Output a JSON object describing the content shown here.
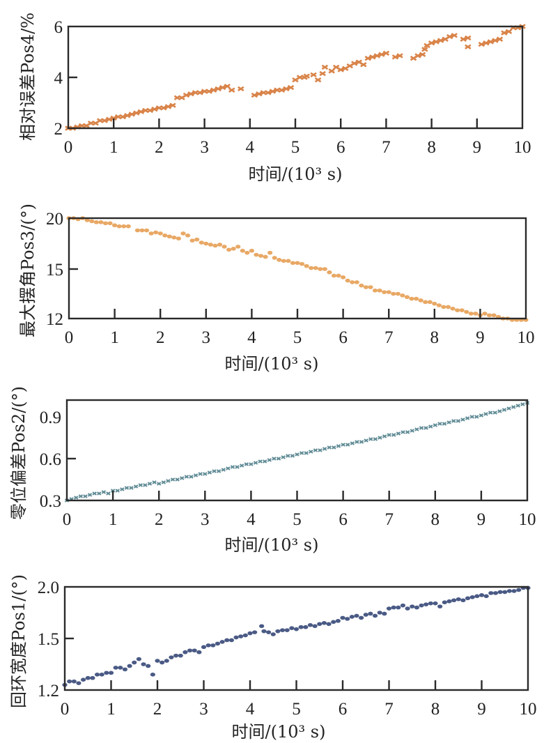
{
  "chart_data": [
    {
      "type": "scatter",
      "marker": "x",
      "color": "#D9844A",
      "ylabel": "相对误差Pos4/%",
      "xlabel": "时间/(10³ s)",
      "xlim": [
        0,
        10
      ],
      "ylim": [
        2,
        6
      ],
      "xticks": [
        "0",
        "1",
        "2",
        "3",
        "4",
        "5",
        "6",
        "7",
        "8",
        "9",
        "10"
      ],
      "yticks": [
        "2",
        "4",
        "6"
      ],
      "ytick_values": [
        2,
        4,
        6
      ],
      "series": [
        {
          "name": "Pos4",
          "x": [
            0,
            0.1,
            0.2,
            0.3,
            0.4,
            0.5,
            0.6,
            0.7,
            0.8,
            0.9,
            1.0,
            1.1,
            1.2,
            1.3,
            1.4,
            1.5,
            1.6,
            1.7,
            1.8,
            1.9,
            2.0,
            2.1,
            2.2,
            2.3,
            2.4,
            2.5,
            2.6,
            2.7,
            2.8,
            2.9,
            3.0,
            3.1,
            3.2,
            3.3,
            3.4,
            3.5,
            3.6,
            3.8,
            4.1,
            4.2,
            4.3,
            4.4,
            4.5,
            4.6,
            4.7,
            4.8,
            4.9,
            5.0,
            5.1,
            5.2,
            5.25,
            5.4,
            5.5,
            5.6,
            5.65,
            5.8,
            5.9,
            6.0,
            6.1,
            6.2,
            6.3,
            6.4,
            6.5,
            6.6,
            6.7,
            6.8,
            6.9,
            7.0,
            7.2,
            7.3,
            7.6,
            7.7,
            7.8,
            7.85,
            7.9,
            8.0,
            8.1,
            8.2,
            8.3,
            8.4,
            8.5,
            8.7,
            8.8,
            8.8,
            9.1,
            9.2,
            9.3,
            9.4,
            9.5,
            9.6,
            9.7,
            9.8,
            9.9,
            10.0
          ],
          "y": [
            2.0,
            2.0,
            2.05,
            2.1,
            2.1,
            2.2,
            2.2,
            2.3,
            2.3,
            2.35,
            2.4,
            2.45,
            2.45,
            2.5,
            2.55,
            2.6,
            2.65,
            2.7,
            2.7,
            2.75,
            2.8,
            2.8,
            2.85,
            2.9,
            3.2,
            3.2,
            3.3,
            3.35,
            3.4,
            3.4,
            3.45,
            3.45,
            3.5,
            3.55,
            3.6,
            3.65,
            3.5,
            3.55,
            3.3,
            3.35,
            3.4,
            3.4,
            3.45,
            3.5,
            3.5,
            3.55,
            3.6,
            3.9,
            4.0,
            4.0,
            4.05,
            4.1,
            3.9,
            4.15,
            4.4,
            4.25,
            4.4,
            4.3,
            4.35,
            4.45,
            4.55,
            4.6,
            4.5,
            4.75,
            4.8,
            4.85,
            4.9,
            4.95,
            4.8,
            4.85,
            4.75,
            4.85,
            4.9,
            5.1,
            5.25,
            5.35,
            5.4,
            5.45,
            5.5,
            5.6,
            5.65,
            5.5,
            5.55,
            5.2,
            5.3,
            5.35,
            5.4,
            5.45,
            5.5,
            5.75,
            5.8,
            5.95,
            5.95,
            6.0
          ]
        }
      ]
    },
    {
      "type": "scatter",
      "marker": "o",
      "color": "#E8A865",
      "ylabel": "最大摆角Pos3/(°)",
      "xlabel": "时间/(10³ s)",
      "xlim": [
        0,
        10
      ],
      "ylim": [
        12,
        20
      ],
      "xticks": [
        "0",
        "1",
        "2",
        "3",
        "4",
        "5",
        "6",
        "7",
        "8",
        "9",
        "10"
      ],
      "yticks": [
        "12",
        "15",
        "20"
      ],
      "ytick_values": [
        12,
        15,
        20
      ],
      "series": [
        {
          "name": "Pos3",
          "x": [
            0,
            0.1,
            0.2,
            0.3,
            0.4,
            0.5,
            0.6,
            0.7,
            0.8,
            0.9,
            1.0,
            1.1,
            1.2,
            1.3,
            1.5,
            1.6,
            1.7,
            1.8,
            1.9,
            2.0,
            2.1,
            2.2,
            2.3,
            2.4,
            2.5,
            2.6,
            2.7,
            2.8,
            2.9,
            3.0,
            3.1,
            3.2,
            3.3,
            3.4,
            3.5,
            3.6,
            3.7,
            3.8,
            3.9,
            4.0,
            4.1,
            4.2,
            4.3,
            4.4,
            4.5,
            4.6,
            4.7,
            4.8,
            4.9,
            5.0,
            5.1,
            5.2,
            5.3,
            5.4,
            5.5,
            5.6,
            5.7,
            5.8,
            5.9,
            6.0,
            6.1,
            6.2,
            6.3,
            6.4,
            6.5,
            6.6,
            6.7,
            6.8,
            6.9,
            7.0,
            7.1,
            7.2,
            7.3,
            7.4,
            7.5,
            7.6,
            7.7,
            7.8,
            7.9,
            8.0,
            8.1,
            8.2,
            8.3,
            8.4,
            8.5,
            8.6,
            8.7,
            8.8,
            8.9,
            9.0,
            9.1,
            9.2,
            9.3,
            9.4,
            9.5,
            9.6,
            9.7,
            9.8,
            9.9,
            10.0
          ],
          "y": [
            20.0,
            20.0,
            19.9,
            20.0,
            19.8,
            19.7,
            19.6,
            19.6,
            19.5,
            19.5,
            19.3,
            19.2,
            19.2,
            19.2,
            18.8,
            18.8,
            18.8,
            18.5,
            18.6,
            18.5,
            18.3,
            18.2,
            18.1,
            18.0,
            18.5,
            18.3,
            17.8,
            17.9,
            17.6,
            17.5,
            17.4,
            17.3,
            17.4,
            17.2,
            16.9,
            17.0,
            17.2,
            16.8,
            16.6,
            16.8,
            16.4,
            16.3,
            16.2,
            16.6,
            16.1,
            15.9,
            15.8,
            15.8,
            15.6,
            15.6,
            15.5,
            15.3,
            15.1,
            15.1,
            15.0,
            15.0,
            14.8,
            14.6,
            14.6,
            14.5,
            14.3,
            14.2,
            14.2,
            14.0,
            13.9,
            13.9,
            13.7,
            13.7,
            13.6,
            13.6,
            13.5,
            13.5,
            13.4,
            13.3,
            13.2,
            13.2,
            13.1,
            13.0,
            13.0,
            12.9,
            12.8,
            12.7,
            12.7,
            12.6,
            12.5,
            12.5,
            12.4,
            12.3,
            12.3,
            12.2,
            12.3,
            12.2,
            12.2,
            12.1,
            12.0,
            12.0,
            11.9,
            11.9,
            11.8,
            11.8
          ]
        }
      ]
    },
    {
      "type": "scatter",
      "marker": "x",
      "color": "#5E8A94",
      "ylabel": "零位偏差Pos2/(°)",
      "xlabel": "时间/(10³ s)",
      "xlim": [
        0,
        10
      ],
      "ylim": [
        0.3,
        1.02
      ],
      "xticks": [
        "0",
        "1",
        "2",
        "3",
        "4",
        "5",
        "6",
        "7",
        "8",
        "9",
        "10"
      ],
      "yticks": [
        "0.3",
        "0.6",
        "0.9"
      ],
      "ytick_values": [
        0.3,
        0.6,
        0.9
      ],
      "series": [
        {
          "name": "Pos2",
          "x": [
            0,
            0.1,
            0.2,
            0.3,
            0.4,
            0.5,
            0.6,
            0.7,
            0.8,
            0.9,
            1.0,
            1.1,
            1.2,
            1.3,
            1.4,
            1.5,
            1.6,
            1.7,
            1.8,
            1.9,
            2.0,
            2.1,
            2.2,
            2.3,
            2.4,
            2.5,
            2.6,
            2.7,
            2.8,
            2.9,
            3.0,
            3.1,
            3.2,
            3.3,
            3.4,
            3.5,
            3.6,
            3.7,
            3.8,
            3.9,
            4.0,
            4.1,
            4.2,
            4.3,
            4.4,
            4.5,
            4.6,
            4.7,
            4.8,
            4.9,
            5.0,
            5.1,
            5.2,
            5.3,
            5.4,
            5.5,
            5.6,
            5.7,
            5.8,
            5.9,
            6.0,
            6.1,
            6.2,
            6.3,
            6.4,
            6.5,
            6.6,
            6.7,
            6.8,
            6.9,
            7.0,
            7.1,
            7.2,
            7.3,
            7.4,
            7.5,
            7.6,
            7.7,
            7.8,
            7.9,
            8.0,
            8.1,
            8.2,
            8.3,
            8.4,
            8.5,
            8.6,
            8.7,
            8.8,
            8.9,
            9.0,
            9.1,
            9.2,
            9.3,
            9.4,
            9.5,
            9.6,
            9.7,
            9.8,
            9.9,
            10.0
          ],
          "y": [
            0.3,
            0.31,
            0.32,
            0.33,
            0.33,
            0.34,
            0.35,
            0.35,
            0.36,
            0.35,
            0.37,
            0.37,
            0.38,
            0.39,
            0.39,
            0.4,
            0.41,
            0.41,
            0.42,
            0.43,
            0.42,
            0.43,
            0.44,
            0.45,
            0.45,
            0.46,
            0.47,
            0.47,
            0.48,
            0.49,
            0.49,
            0.5,
            0.51,
            0.51,
            0.52,
            0.53,
            0.54,
            0.54,
            0.55,
            0.56,
            0.56,
            0.57,
            0.58,
            0.58,
            0.59,
            0.6,
            0.6,
            0.61,
            0.62,
            0.62,
            0.63,
            0.64,
            0.64,
            0.65,
            0.66,
            0.66,
            0.67,
            0.68,
            0.68,
            0.69,
            0.7,
            0.7,
            0.71,
            0.72,
            0.72,
            0.73,
            0.74,
            0.74,
            0.75,
            0.76,
            0.77,
            0.77,
            0.78,
            0.79,
            0.79,
            0.8,
            0.81,
            0.82,
            0.82,
            0.83,
            0.84,
            0.85,
            0.85,
            0.86,
            0.87,
            0.87,
            0.88,
            0.89,
            0.9,
            0.9,
            0.91,
            0.92,
            0.93,
            0.93,
            0.94,
            0.95,
            0.96,
            0.97,
            0.98,
            0.99,
            1.0
          ]
        }
      ]
    },
    {
      "type": "scatter",
      "marker": "o",
      "color": "#4A5A85",
      "ylabel": "回环宽度Pos1/(°)",
      "xlabel": "时间/(10³ s)",
      "xlim": [
        0,
        10
      ],
      "ylim": [
        1.2,
        2.0
      ],
      "xticks": [
        "0",
        "1",
        "2",
        "3",
        "4",
        "5",
        "6",
        "7",
        "8",
        "9",
        "10"
      ],
      "yticks": [
        "1.2",
        "1.5",
        "2.0"
      ],
      "ytick_values": [
        1.2,
        1.5,
        2.0
      ],
      "series": [
        {
          "name": "Pos1",
          "x": [
            0,
            0.1,
            0.2,
            0.3,
            0.4,
            0.5,
            0.6,
            0.7,
            0.8,
            0.9,
            1.0,
            1.1,
            1.2,
            1.3,
            1.4,
            1.5,
            1.6,
            1.7,
            1.8,
            1.9,
            2.0,
            2.1,
            2.2,
            2.3,
            2.4,
            2.5,
            2.6,
            2.7,
            2.8,
            2.9,
            3.0,
            3.1,
            3.2,
            3.3,
            3.4,
            3.5,
            3.6,
            3.7,
            3.8,
            3.9,
            4.0,
            4.1,
            4.25,
            4.3,
            4.4,
            4.5,
            4.6,
            4.7,
            4.8,
            4.9,
            5.0,
            5.1,
            5.2,
            5.3,
            5.4,
            5.5,
            5.6,
            5.7,
            5.8,
            5.9,
            6.0,
            6.1,
            6.2,
            6.3,
            6.4,
            6.5,
            6.6,
            6.7,
            6.8,
            6.9,
            7.0,
            7.1,
            7.2,
            7.3,
            7.4,
            7.5,
            7.6,
            7.7,
            7.8,
            7.9,
            8.0,
            8.1,
            8.2,
            8.3,
            8.4,
            8.5,
            8.6,
            8.7,
            8.8,
            8.9,
            9.0,
            9.1,
            9.2,
            9.3,
            9.4,
            9.5,
            9.6,
            9.7,
            9.8,
            9.9,
            10.0
          ],
          "y": [
            1.23,
            1.25,
            1.25,
            1.24,
            1.26,
            1.27,
            1.27,
            1.29,
            1.29,
            1.3,
            1.3,
            1.33,
            1.33,
            1.32,
            1.34,
            1.36,
            1.38,
            1.35,
            1.34,
            1.29,
            1.37,
            1.36,
            1.37,
            1.39,
            1.4,
            1.4,
            1.42,
            1.43,
            1.43,
            1.42,
            1.45,
            1.46,
            1.46,
            1.47,
            1.48,
            1.49,
            1.49,
            1.51,
            1.52,
            1.53,
            1.55,
            1.56,
            1.62,
            1.57,
            1.56,
            1.54,
            1.57,
            1.58,
            1.58,
            1.6,
            1.59,
            1.61,
            1.61,
            1.63,
            1.62,
            1.64,
            1.65,
            1.64,
            1.66,
            1.67,
            1.7,
            1.69,
            1.71,
            1.72,
            1.7,
            1.73,
            1.74,
            1.72,
            1.75,
            1.74,
            1.79,
            1.8,
            1.8,
            1.82,
            1.79,
            1.81,
            1.8,
            1.82,
            1.83,
            1.84,
            1.84,
            1.81,
            1.85,
            1.86,
            1.87,
            1.88,
            1.87,
            1.89,
            1.9,
            1.91,
            1.92,
            1.91,
            1.94,
            1.94,
            1.95,
            1.95,
            1.96,
            1.96,
            1.97,
            1.99,
            1.99
          ]
        }
      ]
    }
  ]
}
